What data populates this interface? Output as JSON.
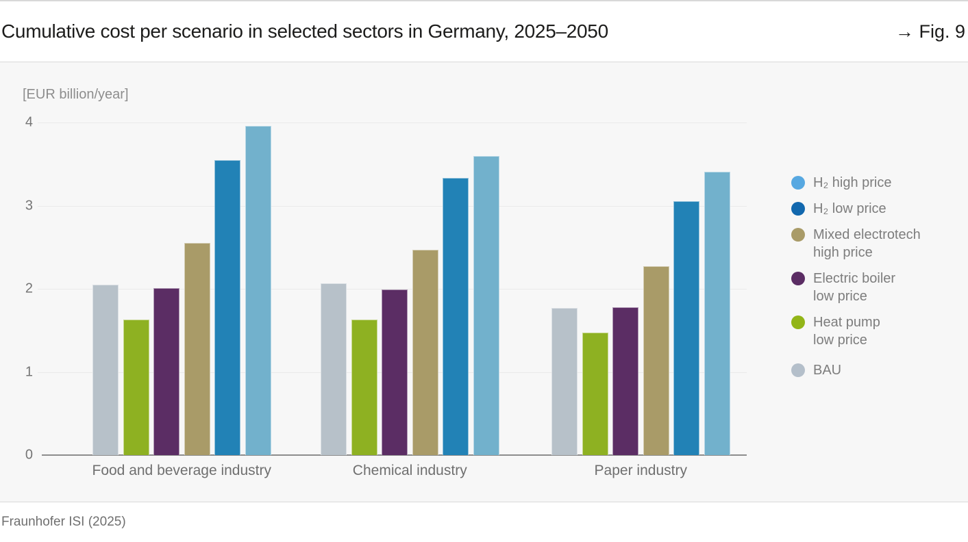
{
  "header": {
    "title": "Cumulative cost per scenario in selected sectors in Germany, 2025–2050",
    "fig_label": "→ Fig. 9"
  },
  "footer": {
    "source": "Fraunhofer ISI (2025)"
  },
  "chart_data": {
    "type": "bar",
    "title": "Cumulative cost per scenario in selected sectors in Germany, 2025–2050",
    "ylabel": "[EUR billion/year]",
    "xlabel": "",
    "ylim": [
      0,
      4
    ],
    "yticks": [
      0,
      1,
      2,
      3,
      4
    ],
    "grid": true,
    "legend_position": "right",
    "categories": [
      "Food and beverage industry",
      "Chemical industry",
      "Paper industry"
    ],
    "series": [
      {
        "name": "BAU",
        "color": "#b7c1c9",
        "values": [
          2.05,
          2.07,
          1.77
        ]
      },
      {
        "name": "Heat pump low price",
        "color": "#8eb122",
        "values": [
          1.63,
          1.63,
          1.47
        ]
      },
      {
        "name": "Electric boiler low price",
        "color": "#5b2d64",
        "values": [
          2.01,
          1.99,
          1.78
        ]
      },
      {
        "name": "Mixed electrotech high price",
        "color": "#a99b68",
        "values": [
          2.55,
          2.47,
          2.27
        ]
      },
      {
        "name": "H₂ low price",
        "color": "#2282b6",
        "values": [
          3.55,
          3.33,
          3.05
        ]
      },
      {
        "name": "H₂ high price",
        "color": "#72b1cc",
        "values": [
          3.96,
          3.6,
          3.41
        ]
      }
    ],
    "legend": [
      {
        "label_lines": [
          "H₂ high price"
        ],
        "dot_color": "#57a8e1"
      },
      {
        "label_lines": [
          "H₂ low price"
        ],
        "dot_color": "#1268ae"
      },
      {
        "label_lines": [
          "Mixed electrotech",
          "high price"
        ],
        "dot_color": "#a99b68"
      },
      {
        "label_lines": [
          "Electric boiler",
          "low price"
        ],
        "dot_color": "#5b2d64"
      },
      {
        "label_lines": [
          "Heat pump",
          "low price"
        ],
        "dot_color": "#92b518"
      },
      {
        "label_lines": [
          "BAU"
        ],
        "dot_color": "#b4bfca"
      }
    ]
  }
}
